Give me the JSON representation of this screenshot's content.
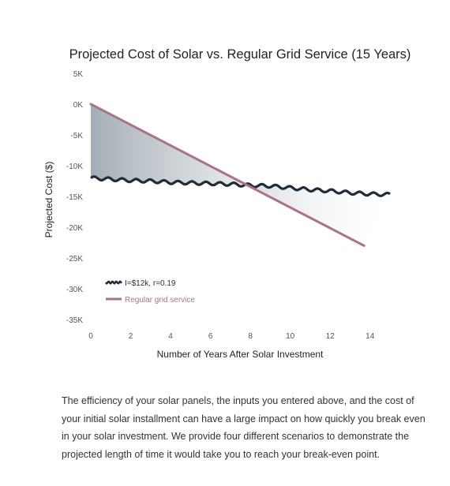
{
  "chart_data": {
    "type": "line",
    "title": "Projected Cost of Solar vs. Regular Grid Service (15 Years)",
    "xlabel": "Number of Years After Solar Investment",
    "ylabel": "Projected Cost ($)",
    "xlim": [
      0,
      15
    ],
    "ylim": [
      -35000,
      5000
    ],
    "x_ticks": [
      0,
      2,
      4,
      6,
      8,
      10,
      12,
      14
    ],
    "x_tick_labels": [
      "0",
      "2",
      "4",
      "6",
      "8",
      "10",
      "12",
      "14"
    ],
    "y_ticks": [
      5000,
      0,
      -5000,
      -10000,
      -15000,
      -20000,
      -25000,
      -30000,
      -35000
    ],
    "y_tick_labels": [
      "5K",
      "0K",
      "-5K",
      "-10K",
      "-15K",
      "-20K",
      "-25K",
      "-30K",
      "-35K"
    ],
    "grid": false,
    "legend_position": "bottom-left",
    "series": [
      {
        "name": "I=$12k, r=0.19",
        "color": "#1f2d3a",
        "style": "wavy",
        "x": [
          0,
          1,
          2,
          3,
          4,
          5,
          6,
          7,
          8,
          9,
          10,
          11,
          12,
          13,
          14,
          15
        ],
        "values": [
          -12000,
          -12200,
          -12400,
          -12500,
          -12700,
          -12800,
          -12900,
          -13000,
          -13200,
          -13300,
          -13600,
          -13900,
          -14100,
          -14400,
          -14600,
          -14700
        ]
      },
      {
        "name": "Regular grid service",
        "color": "#a87384",
        "style": "straight",
        "x": [
          0,
          13.7
        ],
        "values": [
          0,
          -23000
        ]
      }
    ]
  },
  "description": "The efficiency of your solar panels, the inputs you entered above, and the cost of your initial solar installment can have a large impact on how quickly you break even in your solar investment. We provide four different scenarios to demonstrate the projected length of time it would take you to reach your break-even point."
}
